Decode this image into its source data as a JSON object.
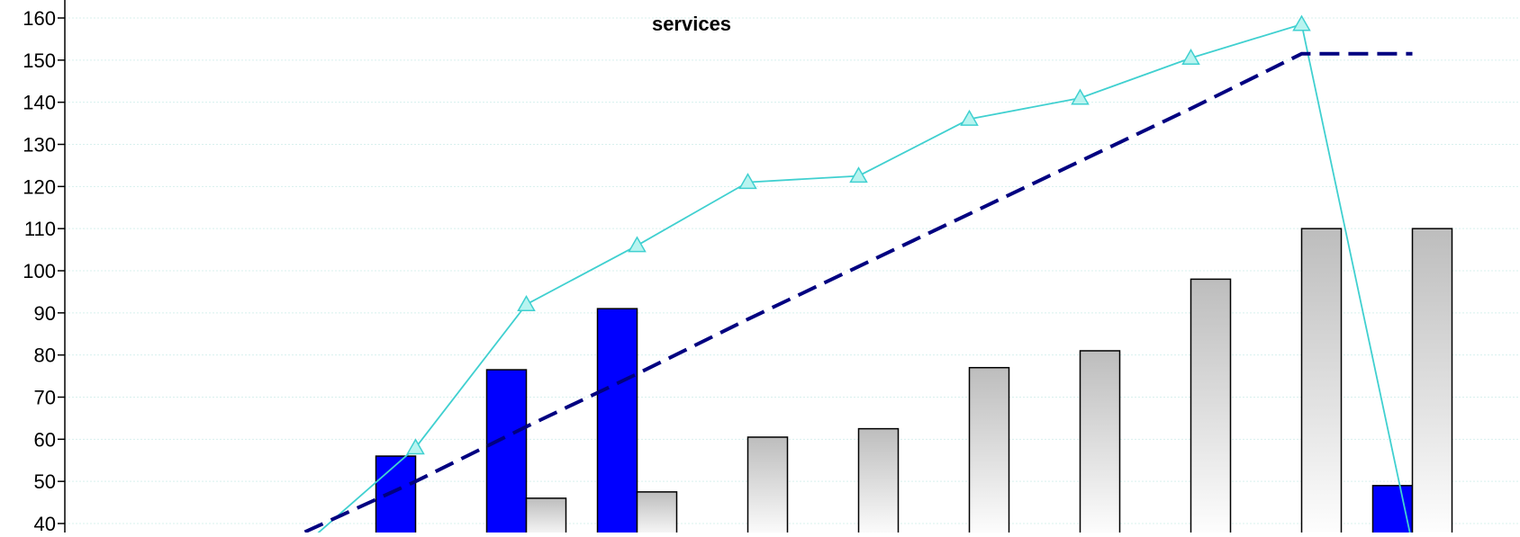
{
  "chart_data": {
    "type": "bar",
    "title": "services",
    "xlabel": "",
    "ylabel": "",
    "ylim": [
      40,
      160
    ],
    "yticks": [
      40,
      50,
      60,
      70,
      80,
      90,
      100,
      110,
      120,
      130,
      140,
      150,
      160
    ],
    "grid": true,
    "slots": 13,
    "series": [
      {
        "kind": "bar",
        "color": "#0000ff",
        "points": [
          {
            "slot": 3,
            "value": 56
          },
          {
            "slot": 4,
            "value": 76.5
          },
          {
            "slot": 5,
            "value": 91
          },
          {
            "slot": 12,
            "value": 49
          }
        ]
      },
      {
        "kind": "bar",
        "color": "#c0c0c0",
        "points": [
          {
            "slot": 4,
            "value": 46
          },
          {
            "slot": 5,
            "value": 47.5
          },
          {
            "slot": 6,
            "value": 60.5
          },
          {
            "slot": 7,
            "value": 62.5
          },
          {
            "slot": 8,
            "value": 77
          },
          {
            "slot": 9,
            "value": 81
          },
          {
            "slot": 10,
            "value": 98
          },
          {
            "slot": 11,
            "value": 110
          },
          {
            "slot": 12,
            "value": 110
          }
        ]
      },
      {
        "kind": "line",
        "color": "#40d0d0",
        "marker": "triangle",
        "points": [
          {
            "slot": 2,
            "value": 35
          },
          {
            "slot": 3,
            "value": 58
          },
          {
            "slot": 4,
            "value": 92
          },
          {
            "slot": 5,
            "value": 106
          },
          {
            "slot": 6,
            "value": 121
          },
          {
            "slot": 7,
            "value": 122.5
          },
          {
            "slot": 8,
            "value": 136
          },
          {
            "slot": 9,
            "value": 141
          },
          {
            "slot": 10,
            "value": 150.5
          },
          {
            "slot": 11,
            "value": 158.5
          },
          {
            "slot": 12,
            "value": 35
          }
        ]
      },
      {
        "kind": "line",
        "color": "#000080",
        "dashed": true,
        "points": [
          {
            "slot": 2,
            "value": 38
          },
          {
            "slot": 3,
            "value": 50
          },
          {
            "slot": 4,
            "value": 63
          },
          {
            "slot": 5,
            "value": 75.5
          },
          {
            "slot": 6,
            "value": 88.5
          },
          {
            "slot": 7,
            "value": 101
          },
          {
            "slot": 8,
            "value": 113.5
          },
          {
            "slot": 9,
            "value": 126
          },
          {
            "slot": 10,
            "value": 138.5
          },
          {
            "slot": 11,
            "value": 151.5
          },
          {
            "slot": 12,
            "value": 151.5
          }
        ]
      }
    ]
  }
}
